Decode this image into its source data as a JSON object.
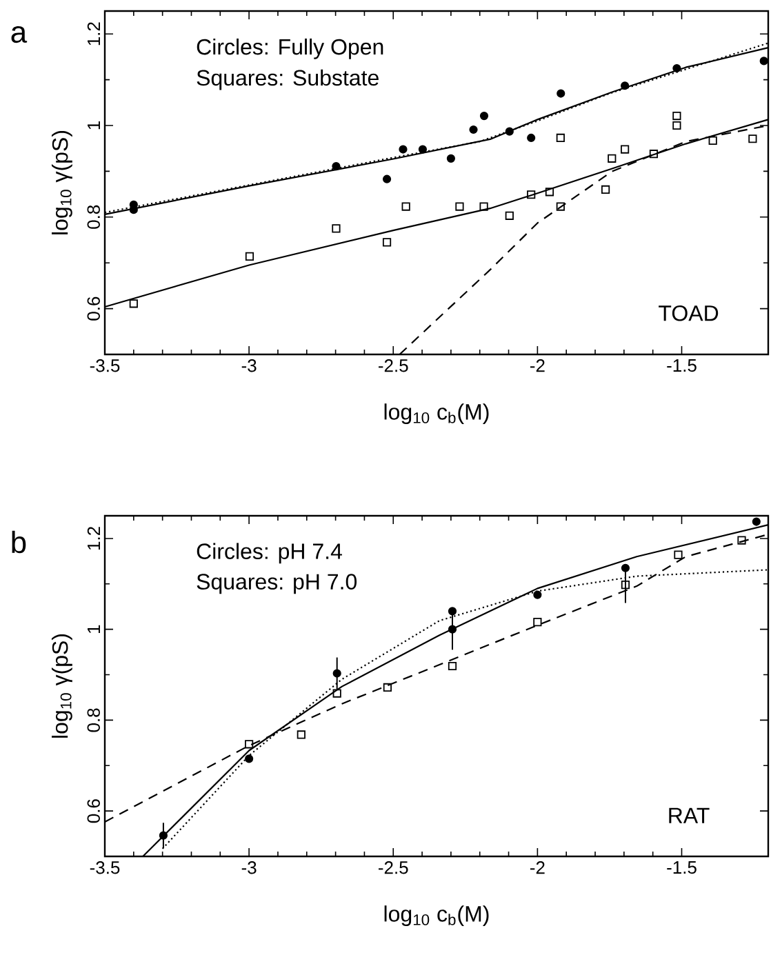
{
  "chart_data": [
    {
      "type": "scatter",
      "xlabel": "log$_{10}$ c$_{b}$(M)",
      "ylabel": "log$_{10}$ γ(pS)",
      "xlim": [
        -3.5,
        -1.2
      ],
      "ylim": [
        0.5,
        1.25
      ],
      "xticks": [
        -3.5,
        -3,
        -2.5,
        -2,
        -1.5
      ],
      "yticks": [
        0.6,
        0.8,
        1,
        1.2
      ],
      "annotations": [
        "a",
        "Circles: Fully Open",
        "Squares: Substate",
        "TOAD"
      ],
      "series": [
        {
          "marker": "circle",
          "color": "#000000",
          "x": [
            -3.4,
            -3.4,
            -2.698,
            -2.522,
            -2.466,
            -2.398,
            -2.3,
            -2.222,
            -2.185,
            -2.097,
            -2.022,
            -1.919,
            -1.697,
            -1.517,
            -1.215
          ],
          "values": [
            0.827,
            0.816,
            0.911,
            0.883,
            0.948,
            0.948,
            0.928,
            0.991,
            1.021,
            0.987,
            0.973,
            1.07,
            1.087,
            1.125,
            1.141
          ]
        },
        {
          "marker": "square",
          "color": "#000000",
          "x": [
            -3.4,
            -2.998,
            -2.698,
            -2.522,
            -2.456,
            -2.27,
            -2.186,
            -2.097,
            -2.022,
            -1.958,
            -1.92,
            -1.92,
            -1.764,
            -1.742,
            -1.697,
            -1.597,
            -1.517,
            -1.517,
            -1.392,
            -1.254
          ],
          "values": [
            0.611,
            0.714,
            0.775,
            0.745,
            0.823,
            0.823,
            0.823,
            0.803,
            0.849,
            0.855,
            0.973,
            0.823,
            0.86,
            0.928,
            0.948,
            0.938,
            1.021,
            1.0,
            0.967,
            0.971
          ]
        },
        {
          "type": "line",
          "line_style": "solid",
          "color": "#000000",
          "x": [
            -3.5,
            -3,
            -2.5,
            -2.164,
            -2,
            -1.741,
            -1.486,
            -1.2
          ],
          "values": [
            0.806,
            0.868,
            0.927,
            0.97,
            1.013,
            1.073,
            1.127,
            1.17
          ]
        },
        {
          "type": "line",
          "line_style": "dotted",
          "color": "#000000",
          "x": [
            -3.5,
            -3,
            -2.5,
            -2.2,
            -2,
            -1.75,
            -1.5,
            -1.2
          ],
          "values": [
            0.81,
            0.87,
            0.93,
            0.965,
            1.01,
            1.07,
            1.12,
            1.18
          ]
        },
        {
          "type": "line",
          "line_style": "solid",
          "color": "#000000",
          "x": [
            -3.5,
            -3,
            -2.5,
            -2.164,
            -2,
            -1.741,
            -1.486,
            -1.2
          ],
          "values": [
            0.604,
            0.695,
            0.771,
            0.819,
            0.852,
            0.906,
            0.96,
            1.013
          ]
        },
        {
          "type": "line",
          "line_style": "dashed",
          "color": "#000000",
          "x": [
            -2.478,
            -2.164,
            -2,
            -1.741,
            -1.486,
            -1.2
          ],
          "values": [
            0.5,
            0.685,
            0.787,
            0.9,
            0.965,
            1.0
          ]
        }
      ]
    },
    {
      "type": "scatter",
      "xlabel": "log$_{10}$ c$_{b}$(M)",
      "ylabel": "log$_{10}$ γ(pS)",
      "xlim": [
        -3.5,
        -1.2
      ],
      "ylim": [
        0.5,
        1.25
      ],
      "xticks": [
        -3.5,
        -3,
        -2.5,
        -2,
        -1.5
      ],
      "yticks": [
        0.6,
        0.8,
        1,
        1.2
      ],
      "annotations": [
        "b",
        "Circles: pH 7.4",
        "Squares: pH 7.0",
        "RAT"
      ],
      "series": [
        {
          "marker": "circle",
          "color": "#000000",
          "x": [
            -3.297,
            -3,
            -2.695,
            -2.295,
            -2.295,
            -2,
            -1.695,
            -1.241
          ],
          "values": [
            0.546,
            0.715,
            0.903,
            1.04,
            1.0,
            1.076,
            1.135,
            1.237
          ],
          "errors": [
            0.028,
            null,
            0.035,
            null,
            0.045,
            null,
            null,
            null
          ]
        },
        {
          "marker": "square",
          "color": "#000000",
          "x": [
            -3,
            -2.819,
            -2.695,
            -2.52,
            -2.295,
            -2,
            -1.695,
            -1.512,
            -1.292
          ],
          "values": [
            0.747,
            0.768,
            0.859,
            0.872,
            0.919,
            1.016,
            1.098,
            1.164,
            1.196
          ],
          "errors": [
            null,
            null,
            null,
            null,
            null,
            null,
            0.04,
            null,
            null
          ]
        },
        {
          "type": "line",
          "line_style": "solid",
          "color": "#000000",
          "x": [
            -3.368,
            -3,
            -2.678,
            -2.34,
            -2,
            -1.656,
            -1.2
          ],
          "values": [
            0.5,
            0.733,
            0.874,
            0.987,
            1.09,
            1.16,
            1.23
          ]
        },
        {
          "type": "line",
          "line_style": "dashed",
          "color": "#000000",
          "x": [
            -3.5,
            -3,
            -2.678,
            -2.34,
            -2,
            -1.656,
            -1.486,
            -1.2
          ],
          "values": [
            0.576,
            0.744,
            0.836,
            0.922,
            1.009,
            1.095,
            1.16,
            1.209
          ]
        },
        {
          "type": "line",
          "line_style": "dotted",
          "color": "#000000",
          "x": [
            -3.3,
            -3,
            -2.678,
            -2.34,
            -2,
            -1.656,
            -1.2
          ],
          "values": [
            0.517,
            0.722,
            0.89,
            1.019,
            1.084,
            1.117,
            1.131
          ]
        }
      ]
    }
  ]
}
